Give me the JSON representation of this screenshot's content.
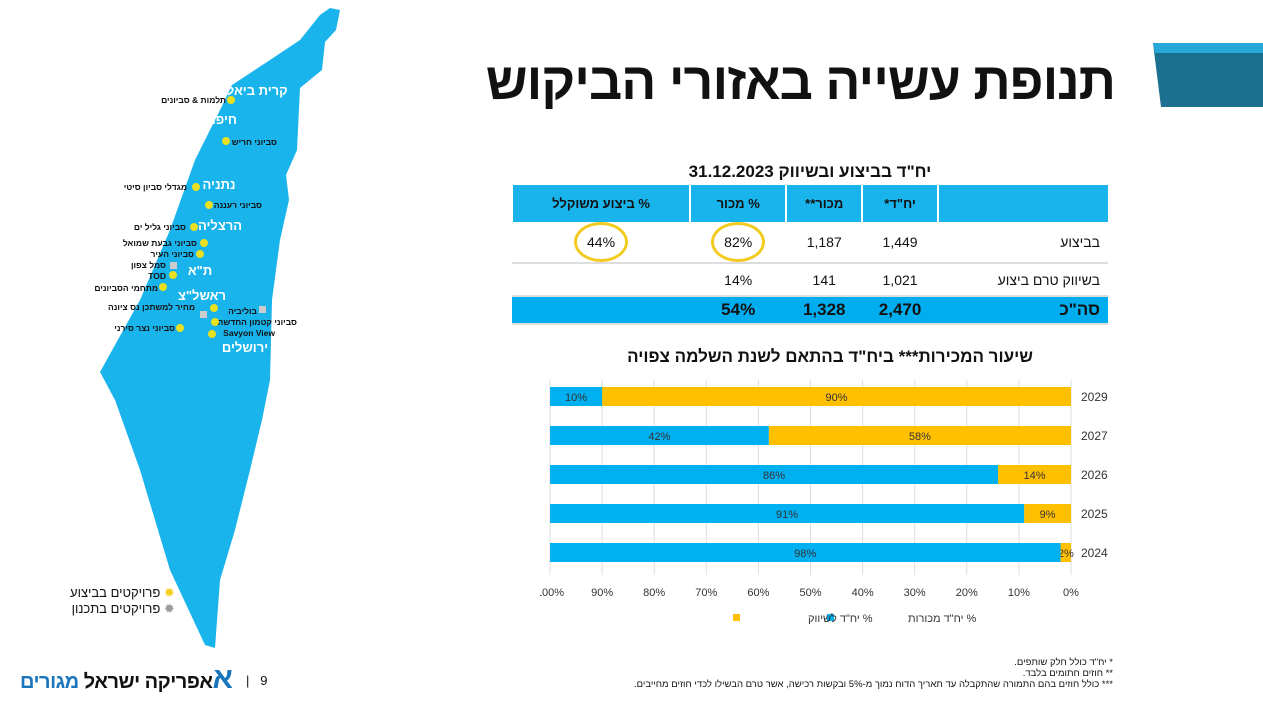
{
  "title": "תנופת עשייה באזורי הביקוש",
  "table": {
    "title": "יח\"ד בביצוע ובשיווק 31.12.2023",
    "headers": [
      "",
      "יח\"ד*",
      "מכור**",
      "% מכור",
      "% ביצוע משוקלל"
    ],
    "rows": [
      {
        "label": "בביצוע",
        "units": "1,449",
        "sold": "1,187",
        "pct_sold": "82%",
        "weighted": "44%"
      },
      {
        "label": "בשיווק טרם ביצוע",
        "units": "1,021",
        "sold": "141",
        "pct_sold": "14%",
        "weighted": ""
      },
      {
        "label": "סה\"כ",
        "units": "2,470",
        "sold": "1,328",
        "pct_sold": "54%",
        "weighted": ""
      }
    ]
  },
  "chart_data": {
    "type": "bar",
    "orientation": "horizontal",
    "stacked": true,
    "title": "שיעור המכירות*** ביח\"ד בהתאם לשנת השלמה צפויה",
    "categories": [
      "2029",
      "2027",
      "2026",
      "2025",
      "2024"
    ],
    "series": [
      {
        "name": "% יח\"ד לשיווק",
        "color": "#ffc000",
        "values": [
          90,
          58,
          14,
          9,
          2
        ],
        "labels": [
          "90%",
          "58%",
          "14%",
          "9%",
          "2%"
        ]
      },
      {
        "name": "% יח\"ד מכורות",
        "color": "#00b0f0",
        "values": [
          10,
          42,
          86,
          91,
          98
        ],
        "labels": [
          "10%",
          "42%",
          "86%",
          "91%",
          "98%"
        ]
      }
    ],
    "xlim": [
      0,
      100
    ],
    "x_reversed": true,
    "xticks": [
      "0%",
      "10%",
      "20%",
      "30%",
      "40%",
      "50%",
      "60%",
      "70%",
      "80%",
      "90%",
      "100%"
    ],
    "grid": true,
    "legend": "bottom"
  },
  "map": {
    "cities": [
      "קרית ביאליק",
      "חיפה",
      "נתניה",
      "הרצליה",
      "ת\"א",
      "ראשל\"צ",
      "ירושלים"
    ],
    "projects": [
      "תלמות & סביונים",
      "סביוני חריש",
      "מגדלי סביון סיטי",
      "סביוני רעננה",
      "סביוני גליל ים",
      "סביוני גבעת שמואל",
      "סביוני העיר",
      "סמל צפון",
      "TOD",
      "מתחמי הסביונים",
      "מחיר למשתכן נס ציונה",
      "בוליביה",
      "סביוני קטמון החדשה",
      "Savyon View",
      "סביוני נצר סירני"
    ],
    "legend": [
      "פרויקטים בביצוע",
      "פרויקטים בתכנון"
    ],
    "colors": {
      "land": "#1ab4ec",
      "active": "#e8e020",
      "planned": "#aaaaaa"
    }
  },
  "footnotes": [
    "* יח\"ד כולל חלק שותפים.",
    "** חוזים חתומים בלבד.",
    "*** כולל חוזים בהם התמורה שהתקבלה עד תאריך הדוח נמוך מ-5% ובקשות רכישה, אשר טרם הבשילו לכדי חוזים מחייבים."
  ],
  "logo": {
    "text": "אפריקה ישראל",
    "accent": "מגורים",
    "color": "#1a75bb"
  },
  "page_number": "9"
}
